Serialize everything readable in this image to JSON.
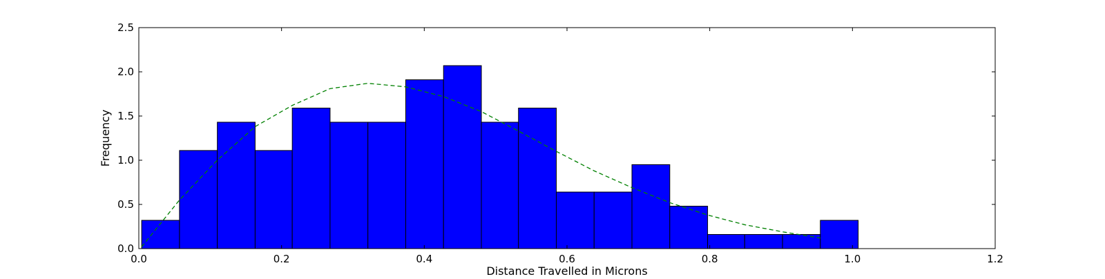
{
  "chart_data": {
    "type": "bar",
    "title": "",
    "xlabel": "Distance Travelled in Microns",
    "ylabel": "Frequency",
    "xlim": [
      0.0,
      1.2
    ],
    "ylim": [
      0.0,
      2.5
    ],
    "xticks": [
      "0.0",
      "0.2",
      "0.4",
      "0.6",
      "0.8",
      "1.0",
      "1.2"
    ],
    "yticks": [
      "0.0",
      "0.5",
      "1.0",
      "1.5",
      "2.0",
      "2.5"
    ],
    "grid": false,
    "bar_color": "#0000ff",
    "curve_color": "#008000",
    "bins": [
      {
        "start": 0.004,
        "end": 0.057,
        "value": 0.32
      },
      {
        "start": 0.057,
        "end": 0.11,
        "value": 1.11
      },
      {
        "start": 0.11,
        "end": 0.163,
        "value": 1.43
      },
      {
        "start": 0.163,
        "end": 0.215,
        "value": 1.11
      },
      {
        "start": 0.215,
        "end": 0.268,
        "value": 1.59
      },
      {
        "start": 0.268,
        "end": 0.321,
        "value": 1.43
      },
      {
        "start": 0.321,
        "end": 0.374,
        "value": 1.43
      },
      {
        "start": 0.374,
        "end": 0.427,
        "value": 1.91
      },
      {
        "start": 0.427,
        "end": 0.48,
        "value": 2.07
      },
      {
        "start": 0.48,
        "end": 0.532,
        "value": 1.43
      },
      {
        "start": 0.532,
        "end": 0.585,
        "value": 1.59
      },
      {
        "start": 0.585,
        "end": 0.638,
        "value": 0.64
      },
      {
        "start": 0.638,
        "end": 0.691,
        "value": 0.64
      },
      {
        "start": 0.691,
        "end": 0.744,
        "value": 0.95
      },
      {
        "start": 0.744,
        "end": 0.797,
        "value": 0.48
      },
      {
        "start": 0.797,
        "end": 0.849,
        "value": 0.16
      },
      {
        "start": 0.849,
        "end": 0.902,
        "value": 0.16
      },
      {
        "start": 0.902,
        "end": 0.955,
        "value": 0.16
      },
      {
        "start": 0.955,
        "end": 1.008,
        "value": 0.32
      }
    ],
    "fit_curve": {
      "style": "dashed",
      "x": [
        0.004,
        0.057,
        0.11,
        0.163,
        0.215,
        0.268,
        0.321,
        0.374,
        0.427,
        0.48,
        0.532,
        0.585,
        0.638,
        0.691,
        0.744,
        0.797,
        0.849,
        0.902,
        0.955
      ],
      "y": [
        0.02,
        0.55,
        1.0,
        1.38,
        1.62,
        1.81,
        1.87,
        1.83,
        1.72,
        1.55,
        1.33,
        1.1,
        0.88,
        0.69,
        0.52,
        0.38,
        0.27,
        0.19,
        0.12
      ]
    }
  }
}
